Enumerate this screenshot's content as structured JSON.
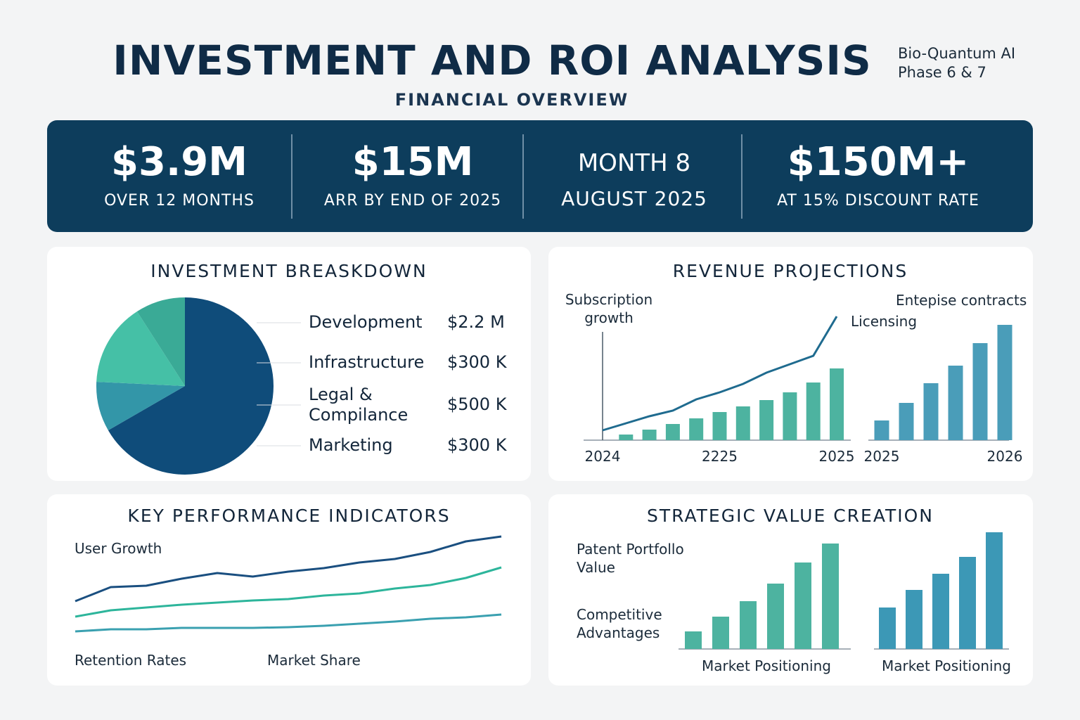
{
  "header": {
    "title": "INVESTMENT AND ROI ANALYSIS",
    "subtitle": "FINANCIAL OVERVIEW",
    "tag_lines": [
      "Bio-Quantum AI",
      "Phase 6 & 7"
    ]
  },
  "kpis": [
    {
      "value": "$3.9M",
      "label": "OVER 12 MONTHS"
    },
    {
      "value": "$15M",
      "label": "ARR BY END OF 2025"
    },
    {
      "value": "MONTH 8",
      "label": "AUGUST 2025"
    },
    {
      "value": "$150M+",
      "label": "AT 15% DISCOUNT RATE"
    }
  ],
  "chart_data": [
    {
      "type": "pie",
      "title": "INVESTMENT BREASKDOWN",
      "categories": [
        "Development",
        "Infrastructure",
        "Legal & Compilance",
        "Marketing"
      ],
      "values": [
        2.2,
        0.3,
        0.5,
        0.3
      ],
      "value_labels": [
        "$2.2 M",
        "$300 K",
        "$500 K",
        "$300 K"
      ],
      "colors": [
        "#0f4c7a",
        "#3396a8",
        "#45c0a6",
        "#3aaa96"
      ]
    },
    {
      "type": "bar",
      "title": "REVENUE PROJECTIONS",
      "categories": [
        "2024",
        null,
        null,
        null,
        null,
        "2225",
        null,
        null,
        null,
        null,
        "2025"
      ],
      "ylim": [
        0,
        200
      ],
      "series": [
        {
          "type": "line",
          "color": "#1f6b8f",
          "values": [
            14,
            24,
            34,
            42,
            58,
            68,
            80,
            96,
            108,
            120,
            176
          ]
        },
        {
          "type": "bar",
          "color": "#4db3a0",
          "values": [
            null,
            8,
            15,
            23,
            31,
            40,
            48,
            57,
            68,
            82,
            102
          ]
        }
      ],
      "annotations": [
        "Subscription growth"
      ]
    },
    {
      "type": "bar",
      "categories": [
        "2025",
        null,
        null,
        null,
        null,
        "2026"
      ],
      "ylim": [
        0,
        200
      ],
      "color": "#4a9db9",
      "values": [
        28,
        53,
        81,
        106,
        138,
        164
      ],
      "annotations": [
        "Entepise contracts",
        "Licensing"
      ]
    },
    {
      "type": "line",
      "title": "KEY PERFORMANCE INDICATORS",
      "ylim": [
        0,
        150
      ],
      "series": [
        {
          "color": "#1a4f80",
          "values": [
            45,
            65,
            67,
            77,
            85,
            80,
            87,
            92,
            100,
            105,
            115,
            130,
            137
          ]
        },
        {
          "color": "#2db59b",
          "values": [
            23,
            32,
            36,
            40,
            43,
            46,
            48,
            53,
            56,
            63,
            68,
            78,
            93
          ]
        },
        {
          "color": "#3aa0b0",
          "values": [
            2,
            5,
            5,
            7,
            7,
            7,
            8,
            10,
            13,
            16,
            20,
            22,
            26
          ]
        }
      ],
      "annotations": [
        "User Growth",
        "Retention Rates",
        "Market Share"
      ]
    },
    {
      "type": "bar",
      "title": "STRATEGIC VALUE CREATION",
      "x_label": "Market Positioning",
      "ylim": [
        0,
        170
      ],
      "color": "#4db3a0",
      "values": [
        25,
        46,
        68,
        93,
        123,
        150
      ],
      "annotations": [
        "Patent Portfollo Value",
        "Competitive Advantages"
      ]
    },
    {
      "type": "bar",
      "x_label": "Market Positioning",
      "ylim": [
        0,
        170
      ],
      "color": "#3c98b6",
      "values": [
        59,
        84,
        107,
        131,
        166
      ]
    }
  ]
}
